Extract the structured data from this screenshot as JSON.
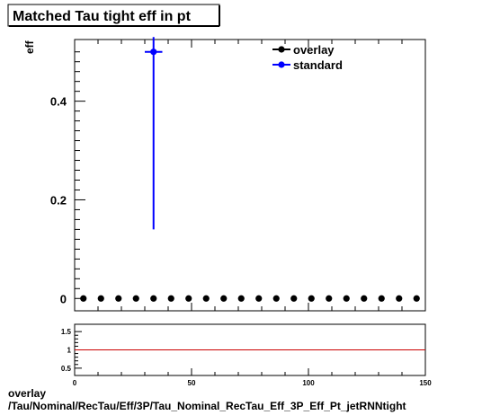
{
  "chart_data": [
    {
      "type": "scatter",
      "title": "Matched Tau tight eff in pt",
      "ylabel": "eff",
      "xlim": [
        0,
        150
      ],
      "ylim": [
        -0.025,
        0.525
      ],
      "y_ticks": [
        0,
        0.2,
        0.4
      ],
      "y_tick_labels": [
        "0",
        "0.2",
        "0.4"
      ],
      "grid": false,
      "legend_position": "top-right",
      "legend": [
        "overlay",
        "standard"
      ],
      "series": [
        {
          "name": "overlay",
          "color": "#000000",
          "x": [
            3.75,
            11.25,
            18.75,
            26.25,
            33.75,
            41.25,
            48.75,
            56.25,
            63.75,
            71.25,
            78.75,
            86.25,
            93.75,
            101.25,
            108.75,
            116.25,
            123.75,
            131.25,
            138.75,
            146.25
          ],
          "y": [
            0,
            0,
            0,
            0,
            0,
            0,
            0,
            0,
            0,
            0,
            0,
            0,
            0,
            0,
            0,
            0,
            0,
            0,
            0,
            0
          ]
        },
        {
          "name": "standard",
          "color": "#0000ff",
          "x": [
            33.75
          ],
          "y": [
            0.5
          ],
          "x_err": [
            3.75
          ],
          "y_err_low": [
            0.36
          ],
          "y_err_high": [
            0.03
          ]
        }
      ]
    },
    {
      "type": "line",
      "xlim": [
        0,
        150
      ],
      "ylim": [
        0.3,
        1.7
      ],
      "x_ticks": [
        0,
        50,
        100,
        150
      ],
      "x_tick_labels": [
        "0",
        "50",
        "100",
        "150"
      ],
      "y_ticks": [
        0.5,
        1,
        1.5
      ],
      "y_tick_labels": [
        "0.5",
        "1",
        "1.5"
      ],
      "reference_line": {
        "y": 1,
        "color": "#cc0000"
      },
      "grid": false
    }
  ],
  "footer": {
    "line1": "overlay",
    "line2": "/Tau/Nominal/RecTau/Eff/3P/Tau_Nominal_RecTau_Eff_3P_Eff_Pt_jetRNNtight"
  }
}
